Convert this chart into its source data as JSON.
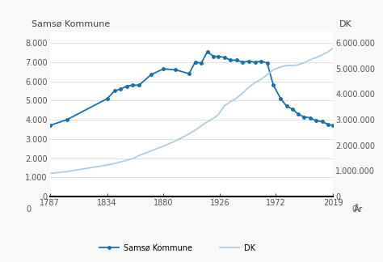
{
  "title_left": "Samsø Kommune",
  "title_right": "DK",
  "xlabel": "År",
  "background_color": "#f8f8f8",
  "plot_bg_color": "#ffffff",
  "samso_years": [
    1787,
    1801,
    1834,
    1840,
    1845,
    1850,
    1855,
    1860,
    1870,
    1880,
    1890,
    1901,
    1906,
    1911,
    1916,
    1921,
    1925,
    1930,
    1935,
    1940,
    1945,
    1950,
    1955,
    1960,
    1965,
    1970,
    1976,
    1981,
    1986,
    1990,
    1995,
    2000,
    2005,
    2010,
    2015,
    2019
  ],
  "samso_pop": [
    3700,
    4000,
    5100,
    5500,
    5600,
    5750,
    5800,
    5800,
    6350,
    6650,
    6600,
    6400,
    7000,
    6950,
    7550,
    7300,
    7300,
    7250,
    7100,
    7100,
    7000,
    7050,
    7000,
    7050,
    6950,
    5800,
    5100,
    4700,
    4550,
    4300,
    4150,
    4100,
    3950,
    3900,
    3750,
    3700
  ],
  "dk_years": [
    1787,
    1801,
    1834,
    1840,
    1845,
    1850,
    1855,
    1860,
    1870,
    1880,
    1890,
    1901,
    1906,
    1911,
    1916,
    1921,
    1925,
    1930,
    1935,
    1940,
    1945,
    1950,
    1955,
    1960,
    1965,
    1970,
    1976,
    1981,
    1986,
    1990,
    1995,
    2000,
    2005,
    2010,
    2015,
    2019
  ],
  "dk_pop": [
    900000,
    975000,
    1230000,
    1290000,
    1350000,
    1415000,
    1480000,
    1600000,
    1785000,
    1970000,
    2172000,
    2450000,
    2590000,
    2760000,
    2921000,
    3060000,
    3200000,
    3551000,
    3706000,
    3849000,
    4045000,
    4281000,
    4448000,
    4585000,
    4758000,
    4951000,
    5065000,
    5123000,
    5120000,
    5141000,
    5228000,
    5340000,
    5430000,
    5535000,
    5660000,
    5800000
  ],
  "samso_color": "#1a6fa8",
  "dk_color": "#b0cce0",
  "xticks": [
    1787,
    1834,
    1880,
    1926,
    1972,
    2019
  ],
  "yticks_left": [
    0,
    1000,
    2000,
    3000,
    4000,
    5000,
    6000,
    7000,
    8000
  ],
  "yticks_right": [
    0,
    1000000,
    2000000,
    3000000,
    4000000,
    5000000,
    6000000
  ],
  "ylim_left": [
    0,
    8600
  ],
  "ylim_right": [
    0,
    6450000
  ],
  "xlim": [
    1787,
    2019
  ],
  "grid_color": "#d0d0d0",
  "tick_label_color": "#555555",
  "title_color": "#444444",
  "axis_label_fontsize": 7,
  "title_fontsize": 8
}
